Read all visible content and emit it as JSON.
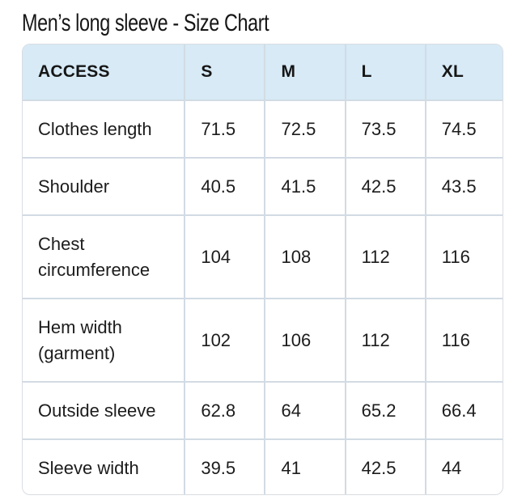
{
  "page": {
    "title": "Men’s long sleeve - Size Chart"
  },
  "table": {
    "headers": [
      "ACCESS",
      "S",
      "M",
      "L",
      "XL"
    ],
    "rows": [
      {
        "label": "Clothes length",
        "values": [
          "71.5",
          "72.5",
          "73.5",
          "74.5"
        ]
      },
      {
        "label": "Shoulder",
        "values": [
          "40.5",
          "41.5",
          "42.5",
          "43.5"
        ]
      },
      {
        "label": "Chest circumference",
        "values": [
          "104",
          "108",
          "112",
          "116"
        ]
      },
      {
        "label": "Hem width (garment)",
        "values": [
          "102",
          "106",
          "112",
          "116"
        ]
      },
      {
        "label": "Outside sleeve",
        "values": [
          "62.8",
          "64",
          "65.2",
          "66.4"
        ]
      },
      {
        "label": "Sleeve width",
        "values": [
          "39.5",
          "41",
          "42.5",
          "44"
        ]
      }
    ]
  },
  "colors": {
    "header_background": "#d7eaf6",
    "grid_line": "#d2dbe4",
    "outer_border": "#d9dde2",
    "text": "#1c1c1c"
  }
}
